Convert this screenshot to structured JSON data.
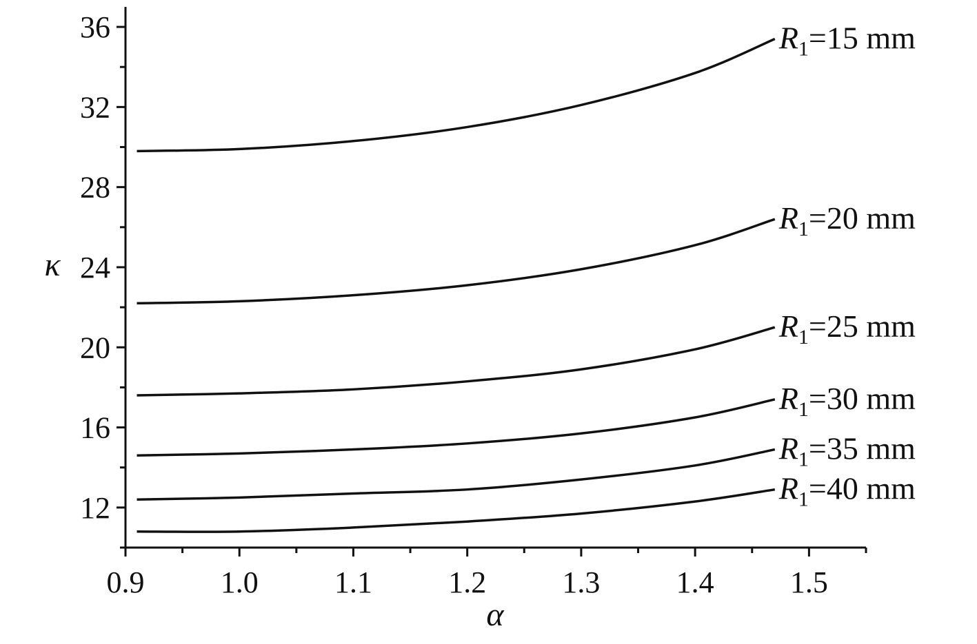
{
  "chart_data": {
    "type": "line",
    "xlabel": "α",
    "ylabel": "κ",
    "xlim": [
      0.9,
      1.55
    ],
    "ylim": [
      10.0,
      37.0
    ],
    "x_ticks": [
      "0.9",
      "1.0",
      "1.1",
      "1.2",
      "1.3",
      "1.4",
      "1.5"
    ],
    "x_tick_values": [
      0.9,
      1.0,
      1.1,
      1.2,
      1.3,
      1.4,
      1.5
    ],
    "y_ticks": [
      "12",
      "16",
      "20",
      "24",
      "28",
      "32",
      "36"
    ],
    "y_tick_values": [
      12,
      16,
      20,
      24,
      28,
      32,
      36
    ],
    "grid": false,
    "x": [
      0.91,
      1.0,
      1.1,
      1.2,
      1.3,
      1.4,
      1.47
    ],
    "series": [
      {
        "name": "R1=15 mm",
        "label_symbol": "R",
        "label_sub": "1",
        "label_rest": "=15 mm",
        "values": [
          29.8,
          29.9,
          30.3,
          31.0,
          32.1,
          33.7,
          35.4
        ]
      },
      {
        "name": "R1=20 mm",
        "label_symbol": "R",
        "label_sub": "1",
        "label_rest": "=20 mm",
        "values": [
          22.2,
          22.3,
          22.6,
          23.1,
          23.9,
          25.1,
          26.4
        ]
      },
      {
        "name": "R1=25 mm",
        "label_symbol": "R",
        "label_sub": "1",
        "label_rest": "=25 mm",
        "values": [
          17.6,
          17.7,
          17.9,
          18.3,
          18.9,
          19.9,
          21.0
        ]
      },
      {
        "name": "R1=30 mm",
        "label_symbol": "R",
        "label_sub": "1",
        "label_rest": "=30 mm",
        "values": [
          14.6,
          14.7,
          14.9,
          15.2,
          15.7,
          16.5,
          17.4
        ]
      },
      {
        "name": "R1=35 mm",
        "label_symbol": "R",
        "label_sub": "1",
        "label_rest": "=35 mm",
        "values": [
          12.4,
          12.5,
          12.7,
          12.9,
          13.4,
          14.1,
          14.9
        ]
      },
      {
        "name": "R1=40 mm",
        "label_symbol": "R",
        "label_sub": "1",
        "label_rest": "=40 mm",
        "values": [
          10.8,
          10.8,
          11.0,
          11.3,
          11.7,
          12.3,
          12.9
        ]
      }
    ]
  }
}
